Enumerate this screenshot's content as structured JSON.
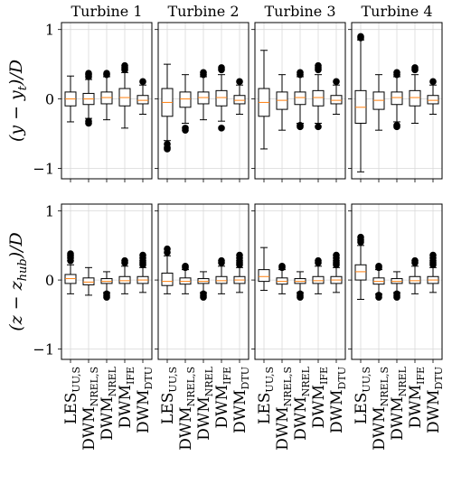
{
  "chart_data": [
    {
      "type": "box",
      "title": "Turbine 1",
      "ylabel": [
        "(y − y",
        "t",
        ")/D"
      ],
      "color": "#000000",
      "median_color": "#ff7f0e",
      "grid": true,
      "ylim": [
        -1.15,
        1.1
      ],
      "yticks": [
        {
          "value": -1,
          "label": "−1"
        },
        0,
        1
      ],
      "boxes": [
        {
          "whislo": -0.33,
          "q1": -0.1,
          "med": 0,
          "q3": 0.1,
          "whishi": 0.33
        },
        {
          "whislo": -0.28,
          "q1": -0.08,
          "med": 0,
          "q3": 0.08,
          "whishi": 0.28,
          "fliers": [
            -0.35,
            -0.32,
            0.32,
            0.35,
            0.37
          ]
        },
        {
          "whislo": -0.3,
          "q1": -0.07,
          "med": 0.02,
          "q3": 0.1,
          "whishi": 0.32,
          "fliers": [
            0.35,
            0.37
          ]
        },
        {
          "whislo": -0.42,
          "q1": -0.1,
          "med": 0.02,
          "q3": 0.15,
          "whishi": 0.38,
          "fliers": [
            0.42,
            0.45,
            0.48
          ]
        },
        {
          "whislo": -0.22,
          "q1": -0.07,
          "med": -0.02,
          "q3": 0.05,
          "whishi": 0.2,
          "fliers": [
            0.25
          ]
        }
      ]
    },
    {
      "type": "box",
      "title": "Turbine 2",
      "color": "#000000",
      "median_color": "#ff7f0e",
      "grid": true,
      "ylim": [
        -1.15,
        1.1
      ],
      "yticks": [
        -1,
        0,
        1
      ],
      "boxes": [
        {
          "whislo": -0.6,
          "q1": -0.25,
          "med": -0.05,
          "q3": 0.15,
          "whishi": 0.5,
          "fliers": [
            -0.65,
            -0.7,
            -0.72
          ]
        },
        {
          "whislo": -0.35,
          "q1": -0.12,
          "med": 0,
          "q3": 0.1,
          "whishi": 0.35,
          "fliers": [
            -0.42,
            -0.45
          ]
        },
        {
          "whislo": -0.3,
          "q1": -0.07,
          "med": 0.02,
          "q3": 0.1,
          "whishi": 0.32,
          "fliers": [
            0.35,
            0.38
          ]
        },
        {
          "whislo": -0.32,
          "q1": -0.1,
          "med": 0.02,
          "q3": 0.12,
          "whishi": 0.35,
          "fliers": [
            -0.42,
            0.42,
            0.45
          ]
        },
        {
          "whislo": -0.22,
          "q1": -0.07,
          "med": -0.02,
          "q3": 0.05,
          "whishi": 0.2,
          "fliers": [
            0.25
          ]
        }
      ]
    },
    {
      "type": "box",
      "title": "Turbine 3",
      "color": "#000000",
      "median_color": "#ff7f0e",
      "grid": true,
      "ylim": [
        -1.15,
        1.1
      ],
      "yticks": [
        -1,
        0,
        1
      ],
      "boxes": [
        {
          "whislo": -0.72,
          "q1": -0.25,
          "med": -0.05,
          "q3": 0.15,
          "whishi": 0.7
        },
        {
          "whislo": -0.45,
          "q1": -0.15,
          "med": -0.02,
          "q3": 0.1,
          "whishi": 0.35
        },
        {
          "whislo": -0.35,
          "q1": -0.08,
          "med": 0.02,
          "q3": 0.1,
          "whishi": 0.32,
          "fliers": [
            -0.38,
            -0.4,
            0.35,
            0.38
          ]
        },
        {
          "whislo": -0.35,
          "q1": -0.1,
          "med": 0.02,
          "q3": 0.12,
          "whishi": 0.35,
          "fliers": [
            -0.4,
            0.42,
            0.45,
            0.48
          ]
        },
        {
          "whislo": -0.22,
          "q1": -0.07,
          "med": -0.02,
          "q3": 0.05,
          "whishi": 0.2,
          "fliers": [
            0.25
          ]
        }
      ]
    },
    {
      "type": "box",
      "title": "Turbine 4",
      "color": "#000000",
      "median_color": "#ff7f0e",
      "grid": true,
      "ylim": [
        -1.15,
        1.1
      ],
      "yticks": [
        -1,
        0,
        1
      ],
      "boxes": [
        {
          "whislo": -1.05,
          "q1": -0.35,
          "med": -0.12,
          "q3": 0.12,
          "whishi": 0.85,
          "fliers": [
            0.88,
            0.9
          ]
        },
        {
          "whislo": -0.45,
          "q1": -0.15,
          "med": -0.02,
          "q3": 0.1,
          "whishi": 0.35
        },
        {
          "whislo": -0.33,
          "q1": -0.08,
          "med": 0.02,
          "q3": 0.1,
          "whishi": 0.32,
          "fliers": [
            -0.38,
            -0.4,
            0.35,
            0.38
          ]
        },
        {
          "whislo": -0.35,
          "q1": -0.1,
          "med": 0.02,
          "q3": 0.12,
          "whishi": 0.35,
          "fliers": [
            0.42,
            0.45
          ]
        },
        {
          "whislo": -0.22,
          "q1": -0.07,
          "med": -0.02,
          "q3": 0.05,
          "whishi": 0.2,
          "fliers": [
            0.25
          ]
        }
      ]
    },
    {
      "type": "box",
      "ylabel": [
        "(z − z",
        "hub",
        ")/D"
      ],
      "color": "#000000",
      "median_color": "#ff7f0e",
      "grid": true,
      "ylim": [
        -1.15,
        1.1
      ],
      "yticks": [
        {
          "value": -1,
          "label": "−1"
        },
        0,
        1
      ],
      "categories": [
        [
          "LES",
          "UU,S"
        ],
        [
          "DWM",
          "NREL,S"
        ],
        [
          "DWM",
          "NREL"
        ],
        [
          "DWM",
          "IFE"
        ],
        [
          "DWM",
          "DTU"
        ]
      ],
      "boxes": [
        {
          "whislo": -0.2,
          "q1": -0.05,
          "med": 0.02,
          "q3": 0.08,
          "whishi": 0.22,
          "fliers": [
            0.28,
            0.32,
            0.35,
            0.38
          ]
        },
        {
          "whislo": -0.22,
          "q1": -0.07,
          "med": -0.03,
          "q3": 0.03,
          "whishi": 0.18
        },
        {
          "whislo": -0.18,
          "q1": -0.05,
          "med": -0.02,
          "q3": 0.02,
          "whishi": 0.12,
          "fliers": [
            -0.2,
            -0.23,
            -0.25
          ]
        },
        {
          "whislo": -0.2,
          "q1": -0.05,
          "med": -0.01,
          "q3": 0.05,
          "whishi": 0.2,
          "fliers": [
            0.25,
            0.28
          ]
        },
        {
          "whislo": -0.18,
          "q1": -0.05,
          "med": 0,
          "q3": 0.05,
          "whishi": 0.18,
          "fliers": [
            0.22,
            0.25,
            0.28,
            0.32,
            0.36
          ]
        }
      ]
    },
    {
      "type": "box",
      "color": "#000000",
      "median_color": "#ff7f0e",
      "grid": true,
      "ylim": [
        -1.15,
        1.1
      ],
      "yticks": [
        -1,
        0,
        1
      ],
      "categories": [
        [
          "LES",
          "UU,S"
        ],
        [
          "DWM",
          "NREL,S"
        ],
        [
          "DWM",
          "NREL"
        ],
        [
          "DWM",
          "IFE"
        ],
        [
          "DWM",
          "DTU"
        ]
      ],
      "boxes": [
        {
          "whislo": -0.2,
          "q1": -0.08,
          "med": -0.02,
          "q3": 0.1,
          "whishi": 0.35,
          "fliers": [
            0.4,
            0.45
          ]
        },
        {
          "whislo": -0.2,
          "q1": -0.06,
          "med": -0.02,
          "q3": 0.03,
          "whishi": 0.15,
          "fliers": [
            0.18,
            0.2
          ]
        },
        {
          "whislo": -0.18,
          "q1": -0.05,
          "med": -0.02,
          "q3": 0.02,
          "whishi": 0.12,
          "fliers": [
            -0.2,
            -0.23,
            -0.25
          ]
        },
        {
          "whislo": -0.2,
          "q1": -0.05,
          "med": -0.01,
          "q3": 0.05,
          "whishi": 0.2,
          "fliers": [
            0.25,
            0.28
          ]
        },
        {
          "whislo": -0.18,
          "q1": -0.05,
          "med": 0,
          "q3": 0.05,
          "whishi": 0.18,
          "fliers": [
            0.22,
            0.25,
            0.28,
            0.32,
            0.36
          ]
        }
      ]
    },
    {
      "type": "box",
      "color": "#000000",
      "median_color": "#ff7f0e",
      "grid": true,
      "ylim": [
        -1.15,
        1.1
      ],
      "yticks": [
        -1,
        0,
        1
      ],
      "categories": [
        [
          "LES",
          "UU,S"
        ],
        [
          "DWM",
          "NREL,S"
        ],
        [
          "DWM",
          "NREL"
        ],
        [
          "DWM",
          "IFE"
        ],
        [
          "DWM",
          "DTU"
        ]
      ],
      "boxes": [
        {
          "whislo": -0.15,
          "q1": -0.02,
          "med": 0.05,
          "q3": 0.15,
          "whishi": 0.47
        },
        {
          "whislo": -0.2,
          "q1": -0.06,
          "med": -0.02,
          "q3": 0.03,
          "whishi": 0.15,
          "fliers": [
            0.18,
            0.2
          ]
        },
        {
          "whislo": -0.18,
          "q1": -0.05,
          "med": -0.02,
          "q3": 0.02,
          "whishi": 0.12,
          "fliers": [
            -0.2,
            -0.23,
            -0.25
          ]
        },
        {
          "whislo": -0.2,
          "q1": -0.05,
          "med": -0.01,
          "q3": 0.05,
          "whishi": 0.2,
          "fliers": [
            0.25,
            0.28
          ]
        },
        {
          "whislo": -0.18,
          "q1": -0.05,
          "med": 0,
          "q3": 0.05,
          "whishi": 0.18,
          "fliers": [
            0.22,
            0.25,
            0.28,
            0.32,
            0.36
          ]
        }
      ]
    },
    {
      "type": "box",
      "color": "#000000",
      "median_color": "#ff7f0e",
      "grid": true,
      "ylim": [
        -1.15,
        1.1
      ],
      "yticks": [
        -1,
        0,
        1
      ],
      "categories": [
        [
          "LES",
          "UU,S"
        ],
        [
          "DWM",
          "NREL,S"
        ],
        [
          "DWM",
          "NREL"
        ],
        [
          "DWM",
          "IFE"
        ],
        [
          "DWM",
          "DTU"
        ]
      ],
      "boxes": [
        {
          "whislo": -0.28,
          "q1": 0,
          "med": 0.12,
          "q3": 0.22,
          "whishi": 0.5,
          "fliers": [
            0.55,
            0.58,
            0.62
          ]
        },
        {
          "whislo": -0.2,
          "q1": -0.06,
          "med": -0.02,
          "q3": 0.03,
          "whishi": 0.15,
          "fliers": [
            0.18,
            0.2,
            -0.22,
            -0.25
          ]
        },
        {
          "whislo": -0.18,
          "q1": -0.05,
          "med": -0.02,
          "q3": 0.02,
          "whishi": 0.12,
          "fliers": [
            -0.2,
            -0.23,
            -0.25
          ]
        },
        {
          "whislo": -0.2,
          "q1": -0.05,
          "med": -0.01,
          "q3": 0.05,
          "whishi": 0.2,
          "fliers": [
            0.25,
            0.28
          ]
        },
        {
          "whislo": -0.18,
          "q1": -0.05,
          "med": 0,
          "q3": 0.05,
          "whishi": 0.18,
          "fliers": [
            0.22,
            0.25,
            0.28,
            0.32,
            0.36
          ]
        }
      ]
    }
  ]
}
